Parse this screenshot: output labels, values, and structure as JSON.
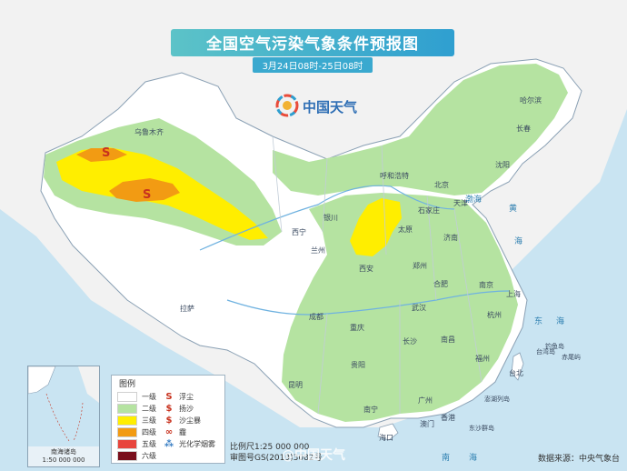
{
  "title": "全国空气污染气象条件预报图",
  "time_range": "3月24日08时-25日08时",
  "logo_text": "中国天气",
  "legend": {
    "title": "图例",
    "levels": [
      {
        "label": "一级",
        "color": "#ffffff"
      },
      {
        "label": "二级",
        "color": "#b5e3a1"
      },
      {
        "label": "三级",
        "color": "#ffee00"
      },
      {
        "label": "四级",
        "color": "#f29b13"
      },
      {
        "label": "五级",
        "color": "#e8453c"
      },
      {
        "label": "六级",
        "color": "#7a0f1c"
      }
    ],
    "symbols": [
      {
        "label": "浮尘",
        "icon": "floating-dust-icon",
        "glyph": "S"
      },
      {
        "label": "扬沙",
        "icon": "blowing-sand-icon",
        "glyph": "$"
      },
      {
        "label": "沙尘暴",
        "icon": "sandstorm-icon",
        "glyph": "$"
      },
      {
        "label": "霾",
        "icon": "haze-icon",
        "glyph": "∞"
      },
      {
        "label": "光化学烟雾",
        "icon": "photochemical-smog-icon",
        "glyph": "⁂"
      }
    ]
  },
  "cities": [
    {
      "name": "乌鲁木齐"
    },
    {
      "name": "哈尔滨"
    },
    {
      "name": "长春"
    },
    {
      "name": "沈阳"
    },
    {
      "name": "呼和浩特"
    },
    {
      "name": "北京"
    },
    {
      "name": "天津"
    },
    {
      "name": "石家庄"
    },
    {
      "name": "银川"
    },
    {
      "name": "太原"
    },
    {
      "name": "济南"
    },
    {
      "name": "西宁"
    },
    {
      "name": "兰州"
    },
    {
      "name": "郑州"
    },
    {
      "name": "西安"
    },
    {
      "name": "南京"
    },
    {
      "name": "合肥"
    },
    {
      "name": "上海"
    },
    {
      "name": "拉萨"
    },
    {
      "name": "成都"
    },
    {
      "name": "武汉"
    },
    {
      "name": "杭州"
    },
    {
      "name": "重庆"
    },
    {
      "name": "长沙"
    },
    {
      "name": "南昌"
    },
    {
      "name": "贵阳"
    },
    {
      "name": "福州"
    },
    {
      "name": "台北"
    },
    {
      "name": "昆明"
    },
    {
      "name": "广州"
    },
    {
      "name": "南宁"
    },
    {
      "name": "香港"
    },
    {
      "name": "澳门"
    },
    {
      "name": "海口"
    }
  ],
  "seas": [
    {
      "name": "渤海"
    },
    {
      "name": "黄"
    },
    {
      "name": "海"
    },
    {
      "name": "东"
    },
    {
      "name": "海"
    },
    {
      "name": "南"
    },
    {
      "name": "海"
    },
    {
      "name": "台湾岛"
    },
    {
      "name": "钓鱼岛"
    },
    {
      "name": "赤尾屿"
    },
    {
      "name": "澎湖列岛"
    },
    {
      "name": "东沙群岛"
    },
    {
      "name": "南海"
    }
  ],
  "inset_label": "南海诸岛\n1:50 000 000",
  "scale": "比例尺1:25 000 000",
  "approval": "审图号GS(2019)3082号",
  "source": "数据来源：中央气象台",
  "watermark": "@中国天气"
}
